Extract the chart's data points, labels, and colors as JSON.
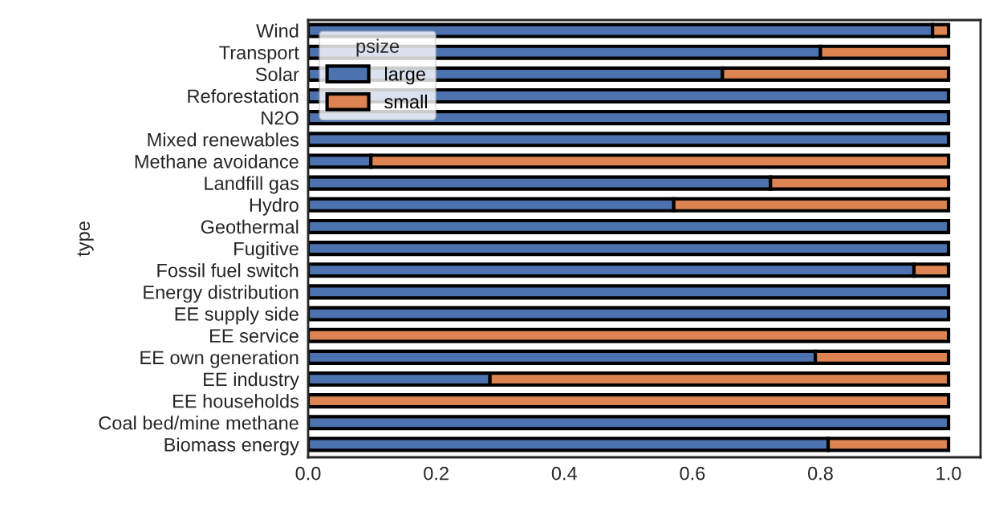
{
  "chart_data": {
    "type": "bar",
    "orientation": "horizontal",
    "stacked": true,
    "ylabel": "type",
    "legend_title": "psize",
    "legend": "top left",
    "categories": [
      "Wind",
      "Transport",
      "Solar",
      "Reforestation",
      "N2O",
      "Mixed renewables",
      "Methane avoidance",
      "Landfill gas",
      "Hydro",
      "Geothermal",
      "Fugitive",
      "Fossil fuel switch",
      "Energy distribution",
      "EE supply side",
      "EE service",
      "EE own generation",
      "EE industry",
      "EE households",
      "Coal bed/mine methane",
      "Biomass energy"
    ],
    "series": [
      {
        "name": "large",
        "color": "#4c72b0",
        "values": [
          0.975,
          0.8,
          0.647,
          1,
          1,
          1,
          0.098,
          0.722,
          0.571,
          1,
          1,
          0.946,
          1,
          1,
          0,
          0.792,
          0.284,
          0,
          1,
          0.812
        ]
      },
      {
        "name": "small",
        "color": "#dd8452",
        "values": [
          0.025,
          0.2,
          0.353,
          0,
          0,
          0,
          0.902,
          0.278,
          0.429,
          0,
          0,
          0.054,
          0,
          0,
          1,
          0.208,
          0.716,
          1,
          0,
          0.188
        ]
      }
    ],
    "xlim": [
      0,
      1.05
    ],
    "xticks": [
      {
        "value": 0,
        "label": "0.0"
      },
      0.2,
      0.4,
      0.6,
      0.8,
      {
        "value": 1,
        "label": "1.0"
      }
    ],
    "grid": false
  }
}
